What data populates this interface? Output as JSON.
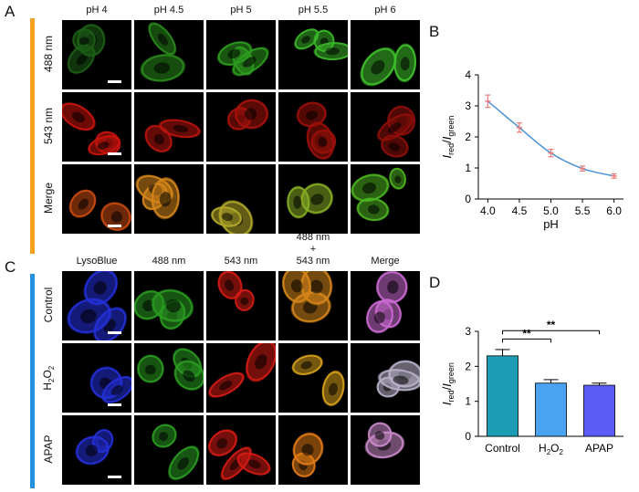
{
  "panel_letters": {
    "a": "A",
    "b": "B",
    "c": "C",
    "d": "D"
  },
  "panel_a": {
    "columns": [
      "pH 4",
      "pH 4.5",
      "pH 5",
      "pH 5.5",
      "pH 6"
    ],
    "rows": [
      "488 nm",
      "543 nm",
      "Merge"
    ],
    "tile_colors": [
      [
        "#1d5e16",
        "#2a8a1c",
        "#2e9b1f",
        "#3bb52a",
        "#3fc12c"
      ],
      [
        "#c8140c",
        "#b8140c",
        "#a8120b",
        "#9a100a",
        "#8e0f0a"
      ],
      [
        "#c84a10",
        "#d6861a",
        "#b3a82a",
        "#86ad24",
        "#4cb320"
      ]
    ],
    "side_bar_color": "#f5a11e"
  },
  "panel_c": {
    "columns": [
      "LysoBlue",
      "488 nm",
      "543 nm",
      "488 nm\n+\n543 nm",
      "Merge"
    ],
    "column_lines": [
      [
        "LysoBlue"
      ],
      [
        "488 nm"
      ],
      [
        "543 nm"
      ],
      [
        "488 nm",
        "+",
        "543 nm"
      ],
      [
        "Merge"
      ]
    ],
    "rows": [
      "Control",
      "H2O2",
      "APAP"
    ],
    "tile_colors": [
      [
        "#2430d8",
        "#2a9a20",
        "#d41b14",
        "#d6861a",
        "#c96ad0"
      ],
      [
        "#2430d8",
        "#2a9a20",
        "#d41b14",
        "#d6a01a",
        "#b8b0c8"
      ],
      [
        "#2430d8",
        "#2a9a20",
        "#d41b14",
        "#e07a16",
        "#c98ac8"
      ]
    ],
    "side_bar_color": "#2391e0"
  },
  "chart_data": [
    {
      "type": "line",
      "x": [
        4.0,
        4.5,
        5.0,
        5.5,
        6.0
      ],
      "y": [
        3.15,
        2.3,
        1.48,
        0.98,
        0.74
      ],
      "error": [
        0.2,
        0.15,
        0.12,
        0.08,
        0.07
      ],
      "xlabel": "pH",
      "ylabel": "Ired/Igreen",
      "xticks": [
        "4.0",
        "4.5",
        "5.0",
        "5.5",
        "6.0"
      ],
      "yticks": [
        "0",
        "1",
        "2",
        "3",
        "4"
      ],
      "xlim": [
        3.85,
        6.15
      ],
      "ylim": [
        0,
        4
      ],
      "line_color": "#4a90d9",
      "marker_color": "#e87a7a",
      "grid": false
    },
    {
      "type": "bar",
      "categories": [
        "Control",
        "H2O2",
        "APAP"
      ],
      "values": [
        2.3,
        1.52,
        1.46
      ],
      "error": [
        0.18,
        0.1,
        0.06
      ],
      "ylabel": "Ired/Igreen",
      "yticks": [
        "0",
        "1",
        "2",
        "3"
      ],
      "ylim": [
        0,
        3
      ],
      "bar_colors": [
        "#1d9db3",
        "#4aa3f0",
        "#5a5cf5"
      ],
      "significance": [
        {
          "from": "Control",
          "to": "H2O2",
          "label": "**"
        },
        {
          "from": "Control",
          "to": "APAP",
          "label": "**"
        }
      ],
      "grid": false
    }
  ]
}
